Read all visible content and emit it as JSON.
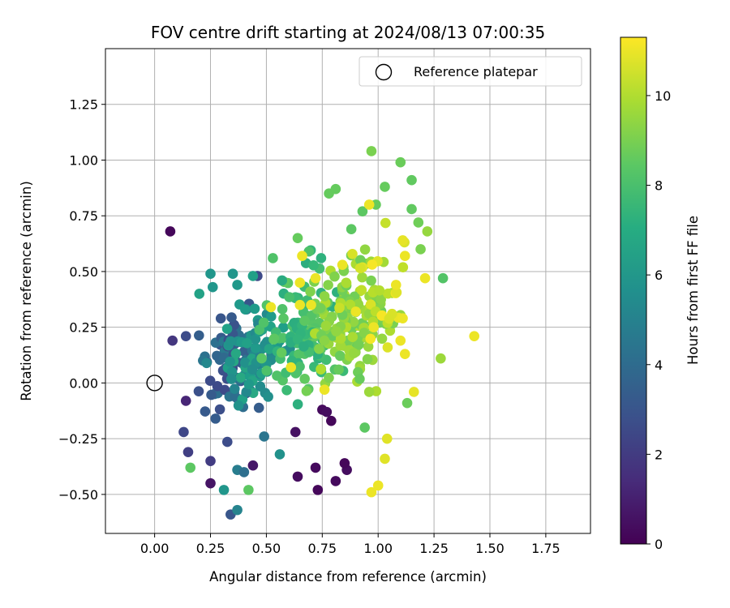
{
  "chart_data": {
    "type": "scatter",
    "title": "FOV centre drift starting at 2024/08/13 07:00:35",
    "xlabel": "Angular distance from reference (arcmin)",
    "ylabel": "Rotation from reference (arcmin)",
    "xlim": [
      -0.22,
      1.95
    ],
    "ylim": [
      -0.675,
      1.5
    ],
    "xticks": [
      "0.00",
      "0.25",
      "0.50",
      "0.75",
      "1.00",
      "1.25",
      "1.50",
      "1.75"
    ],
    "yticks": [
      "−0.50",
      "−0.25",
      "0.00",
      "0.25",
      "0.50",
      "0.75",
      "1.00",
      "1.25"
    ],
    "grid": true,
    "legend": {
      "placement": "top-right",
      "entries": [
        "Reference platepar"
      ]
    },
    "reference_point": {
      "x": 0.0,
      "y": 0.0,
      "label": "Reference platepar"
    },
    "colorbar": {
      "label": "Hours from first FF file",
      "range": [
        0,
        11.3
      ],
      "ticks": [
        "0",
        "2",
        "4",
        "6",
        "8",
        "10"
      ],
      "colormap": "viridis"
    },
    "points_note": "outlier points read from the figure; dense cluster reproduced per colour band",
    "points": [
      {
        "x": 0.07,
        "y": 0.68,
        "h": 0.2
      },
      {
        "x": 0.75,
        "y": -0.12,
        "h": 0.3
      },
      {
        "x": 0.73,
        "y": -0.48,
        "h": 0.2
      },
      {
        "x": 0.81,
        "y": -0.44,
        "h": 0.3
      },
      {
        "x": 0.86,
        "y": -0.39,
        "h": 0.4
      },
      {
        "x": 0.85,
        "y": -0.36,
        "h": 0.2
      },
      {
        "x": 0.72,
        "y": -0.38,
        "h": 0.3
      },
      {
        "x": 0.64,
        "y": -0.42,
        "h": 0.4
      },
      {
        "x": 0.63,
        "y": -0.22,
        "h": 0.5
      },
      {
        "x": 0.79,
        "y": -0.17,
        "h": 0.2
      },
      {
        "x": 0.77,
        "y": -0.13,
        "h": 0.4
      },
      {
        "x": 0.25,
        "y": -0.45,
        "h": 0.6
      },
      {
        "x": 0.44,
        "y": -0.37,
        "h": 0.7
      },
      {
        "x": 0.14,
        "y": -0.08,
        "h": 1.2
      },
      {
        "x": 0.08,
        "y": 0.19,
        "h": 1.8
      },
      {
        "x": 0.15,
        "y": -0.31,
        "h": 2.1
      },
      {
        "x": 0.25,
        "y": -0.35,
        "h": 2.0
      },
      {
        "x": 0.13,
        "y": -0.22,
        "h": 2.4
      },
      {
        "x": 0.46,
        "y": 0.48,
        "h": 2.5
      },
      {
        "x": 0.14,
        "y": 0.21,
        "h": 2.6
      },
      {
        "x": 0.34,
        "y": -0.59,
        "h": 3.0
      },
      {
        "x": 0.37,
        "y": -0.57,
        "h": 5.1
      },
      {
        "x": 0.31,
        "y": -0.48,
        "h": 5.9
      },
      {
        "x": 0.37,
        "y": -0.39,
        "h": 4.8
      },
      {
        "x": 0.4,
        "y": -0.4,
        "h": 4.1
      },
      {
        "x": 0.49,
        "y": -0.24,
        "h": 4.4
      },
      {
        "x": 0.56,
        "y": -0.32,
        "h": 5.7
      },
      {
        "x": 0.25,
        "y": 0.49,
        "h": 5.9
      },
      {
        "x": 0.35,
        "y": 0.49,
        "h": 5.9
      },
      {
        "x": 0.37,
        "y": 0.44,
        "h": 6.0
      },
      {
        "x": 0.26,
        "y": 0.43,
        "h": 5.9
      },
      {
        "x": 0.2,
        "y": 0.4,
        "h": 6.5
      },
      {
        "x": 0.44,
        "y": 0.48,
        "h": 6.4
      },
      {
        "x": 0.57,
        "y": 0.46,
        "h": 6.9
      },
      {
        "x": 0.16,
        "y": -0.38,
        "h": 8.4
      },
      {
        "x": 0.42,
        "y": -0.48,
        "h": 8.4
      },
      {
        "x": 0.64,
        "y": 0.65,
        "h": 8.6
      },
      {
        "x": 0.69,
        "y": 0.59,
        "h": 8.1
      },
      {
        "x": 0.78,
        "y": 0.85,
        "h": 8.6
      },
      {
        "x": 0.81,
        "y": 0.87,
        "h": 8.6
      },
      {
        "x": 0.93,
        "y": 0.77,
        "h": 8.4
      },
      {
        "x": 0.88,
        "y": 0.69,
        "h": 8.4
      },
      {
        "x": 0.97,
        "y": 1.04,
        "h": 9.0
      },
      {
        "x": 1.1,
        "y": 0.99,
        "h": 8.7
      },
      {
        "x": 1.15,
        "y": 0.91,
        "h": 8.5
      },
      {
        "x": 1.03,
        "y": 0.88,
        "h": 8.6
      },
      {
        "x": 0.99,
        "y": 0.8,
        "h": 8.6
      },
      {
        "x": 1.15,
        "y": 0.78,
        "h": 8.5
      },
      {
        "x": 1.18,
        "y": 0.72,
        "h": 8.8
      },
      {
        "x": 1.22,
        "y": 0.68,
        "h": 9.5
      },
      {
        "x": 1.19,
        "y": 0.6,
        "h": 9.0
      },
      {
        "x": 1.29,
        "y": 0.47,
        "h": 8.2
      },
      {
        "x": 1.28,
        "y": 0.11,
        "h": 9.6
      },
      {
        "x": 1.43,
        "y": 0.21,
        "h": 11.0
      },
      {
        "x": 1.16,
        "y": -0.04,
        "h": 10.9
      },
      {
        "x": 1.13,
        "y": -0.09,
        "h": 8.7
      },
      {
        "x": 0.94,
        "y": -0.2,
        "h": 8.4
      },
      {
        "x": 0.96,
        "y": -0.04,
        "h": 9.6
      },
      {
        "x": 0.97,
        "y": -0.49,
        "h": 11.0
      },
      {
        "x": 1.0,
        "y": -0.46,
        "h": 11.0
      },
      {
        "x": 1.03,
        "y": -0.34,
        "h": 10.8
      },
      {
        "x": 1.04,
        "y": -0.25,
        "h": 10.8
      },
      {
        "x": 0.96,
        "y": 0.8,
        "h": 11.0
      },
      {
        "x": 1.11,
        "y": 0.64,
        "h": 10.9
      },
      {
        "x": 1.12,
        "y": 0.57,
        "h": 11.0
      },
      {
        "x": 0.66,
        "y": 0.57,
        "h": 11.0
      },
      {
        "x": 0.65,
        "y": 0.45,
        "h": 11.0
      },
      {
        "x": 0.65,
        "y": 0.35,
        "h": 11.0
      },
      {
        "x": 0.52,
        "y": 0.34,
        "h": 11.0
      },
      {
        "x": 0.61,
        "y": 0.07,
        "h": 11.0
      },
      {
        "x": 0.76,
        "y": -0.03,
        "h": 11.0
      },
      {
        "x": 0.84,
        "y": 0.53,
        "h": 11.0
      },
      {
        "x": 1.08,
        "y": 0.44,
        "h": 11.0
      },
      {
        "x": 1.11,
        "y": 0.29,
        "h": 11.0
      },
      {
        "x": 1.1,
        "y": 0.19,
        "h": 11.0
      },
      {
        "x": 0.7,
        "y": 0.35,
        "h": 11.0
      },
      {
        "x": 0.9,
        "y": 0.32,
        "h": 11.0
      },
      {
        "x": 0.98,
        "y": 0.25,
        "h": 11.0
      },
      {
        "x": 0.72,
        "y": 0.47,
        "h": 11.0
      },
      {
        "x": 1.21,
        "y": 0.47,
        "h": 11.0
      },
      {
        "x": 1.12,
        "y": 0.13,
        "h": 11.0
      }
    ]
  }
}
